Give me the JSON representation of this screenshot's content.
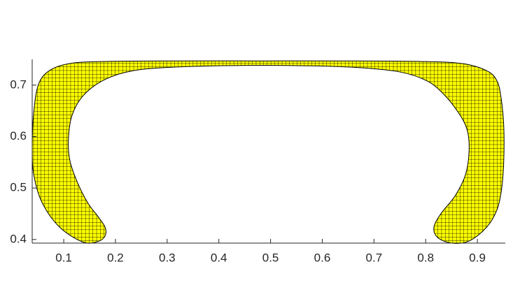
{
  "chart_data": {
    "type": "area",
    "x": [
      0.137,
      0.092,
      0.058,
      0.042,
      0.039,
      0.042,
      0.051,
      0.072,
      0.112,
      0.18,
      0.315,
      0.478,
      0.64,
      0.789,
      0.87,
      0.918,
      0.938,
      0.946,
      0.951,
      0.951,
      0.947,
      0.938,
      0.918,
      0.884,
      0.85,
      0.823,
      0.816,
      0.83,
      0.857,
      0.877,
      0.884,
      0.88,
      0.863,
      0.836,
      0.803,
      0.748,
      0.654,
      0.545,
      0.424,
      0.315,
      0.234,
      0.18,
      0.139,
      0.116,
      0.109,
      0.112,
      0.126,
      0.146,
      0.166,
      0.18,
      0.18,
      0.166
    ],
    "y": [
      0.395,
      0.424,
      0.472,
      0.526,
      0.58,
      0.647,
      0.701,
      0.728,
      0.742,
      0.746,
      0.747,
      0.747,
      0.747,
      0.746,
      0.742,
      0.728,
      0.708,
      0.674,
      0.62,
      0.553,
      0.499,
      0.458,
      0.424,
      0.397,
      0.393,
      0.404,
      0.424,
      0.451,
      0.485,
      0.526,
      0.573,
      0.614,
      0.647,
      0.681,
      0.708,
      0.726,
      0.735,
      0.738,
      0.738,
      0.735,
      0.728,
      0.711,
      0.681,
      0.641,
      0.593,
      0.553,
      0.512,
      0.472,
      0.445,
      0.424,
      0.407,
      0.396
    ],
    "color": "#ffff00",
    "xlim": [
      0.039,
      0.954
    ],
    "ylim": [
      0.393,
      0.75
    ],
    "xticks": [
      0.1,
      0.2,
      0.3,
      0.4,
      0.5,
      0.6,
      0.7,
      0.8,
      0.9
    ],
    "yticks": [
      0.4,
      0.5,
      0.6,
      0.7
    ]
  }
}
